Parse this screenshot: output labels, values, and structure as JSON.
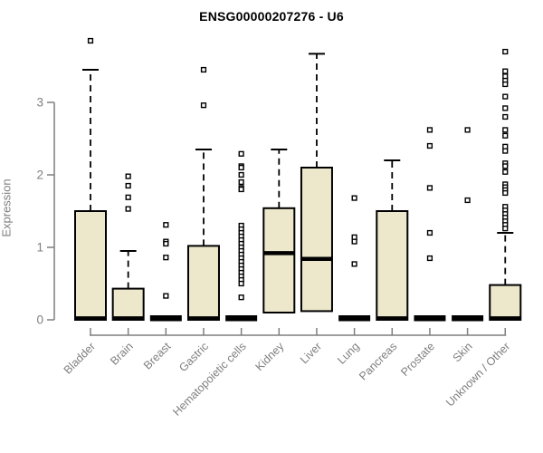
{
  "chart_data": {
    "type": "boxplot",
    "title": "ENSG00000207276 - U6",
    "ylabel": "Expression",
    "xlabel": "",
    "ylim": [
      0,
      3.9
    ],
    "yticks": [
      0,
      1,
      2,
      3
    ],
    "grid": false,
    "legend": "none",
    "categories": [
      "Bladder",
      "Brain",
      "Breast",
      "Gastric",
      "Hematopoietic cells",
      "Kidney",
      "Liver",
      "Lung",
      "Pancreas",
      "Prostate",
      "Skin",
      "Unknown / Other"
    ],
    "series": [
      {
        "category": "Bladder",
        "q1": 0,
        "median": 0.02,
        "q3": 1.5,
        "whisker_low": 0,
        "whisker_high": 3.45,
        "outliers": [
          3.85
        ]
      },
      {
        "category": "Brain",
        "q1": 0,
        "median": 0.02,
        "q3": 0.43,
        "whisker_low": 0,
        "whisker_high": 0.95,
        "outliers": [
          1.98,
          1.85,
          1.69,
          1.53
        ]
      },
      {
        "category": "Breast",
        "q1": 0,
        "median": 0,
        "q3": 0,
        "whisker_low": 0,
        "whisker_high": 0,
        "outliers": [
          1.31,
          1.08,
          1.05,
          0.86,
          0.33
        ]
      },
      {
        "category": "Gastric",
        "q1": 0,
        "median": 0.02,
        "q3": 1.02,
        "whisker_low": 0,
        "whisker_high": 2.35,
        "outliers": [
          3.45,
          2.96
        ]
      },
      {
        "category": "Hematopoietic cells",
        "q1": 0,
        "median": 0,
        "q3": 0,
        "whisker_low": 0,
        "whisker_high": 0,
        "outliers": [
          2.29,
          2.12,
          2.1,
          2.0,
          1.9,
          1.82,
          1.8,
          1.3,
          1.25,
          1.2,
          1.15,
          1.1,
          1.05,
          1.0,
          0.95,
          0.9,
          0.85,
          0.8,
          0.75,
          0.7,
          0.65,
          0.6,
          0.55,
          0.5,
          0.31
        ]
      },
      {
        "category": "Kidney",
        "q1": 0.1,
        "median": 0.92,
        "q3": 1.54,
        "whisker_low": 0.1,
        "whisker_high": 2.35,
        "outliers": []
      },
      {
        "category": "Liver",
        "q1": 0.12,
        "median": 0.84,
        "q3": 2.1,
        "whisker_low": 0.12,
        "whisker_high": 3.67,
        "outliers": []
      },
      {
        "category": "Lung",
        "q1": 0,
        "median": 0,
        "q3": 0,
        "whisker_low": 0,
        "whisker_high": 0,
        "outliers": [
          1.68,
          1.14,
          1.08,
          0.77
        ]
      },
      {
        "category": "Pancreas",
        "q1": 0,
        "median": 0.02,
        "q3": 1.5,
        "whisker_low": 0,
        "whisker_high": 2.2,
        "outliers": []
      },
      {
        "category": "Prostate",
        "q1": 0,
        "median": 0,
        "q3": 0,
        "whisker_low": 0,
        "whisker_high": 0,
        "outliers": [
          2.62,
          2.4,
          1.82,
          1.2,
          0.85
        ]
      },
      {
        "category": "Skin",
        "q1": 0,
        "median": 0,
        "q3": 0,
        "whisker_low": 0,
        "whisker_high": 0,
        "outliers": [
          2.62,
          1.65
        ]
      },
      {
        "category": "Unknown / Other",
        "q1": 0,
        "median": 0.02,
        "q3": 0.48,
        "whisker_low": 0,
        "whisker_high": 1.2,
        "outliers": [
          3.7,
          3.43,
          3.36,
          3.3,
          3.25,
          3.08,
          2.92,
          2.8,
          2.62,
          2.54,
          2.39,
          2.33,
          2.16,
          2.12,
          2.04,
          1.87,
          1.83,
          1.79,
          1.75,
          1.56,
          1.51,
          1.46,
          1.41,
          1.36,
          1.31,
          1.26
        ]
      }
    ],
    "colors": {
      "box_fill": "#ede8cc",
      "box_border": "#000000",
      "median": "#000000",
      "whisker": "#000000",
      "outlier_fill": "#ffffff",
      "outlier_border": "#000000",
      "axis": "#7f7f7f",
      "tick_label": "#7f7f7f",
      "title": "#000000",
      "background": "#ffffff"
    }
  }
}
